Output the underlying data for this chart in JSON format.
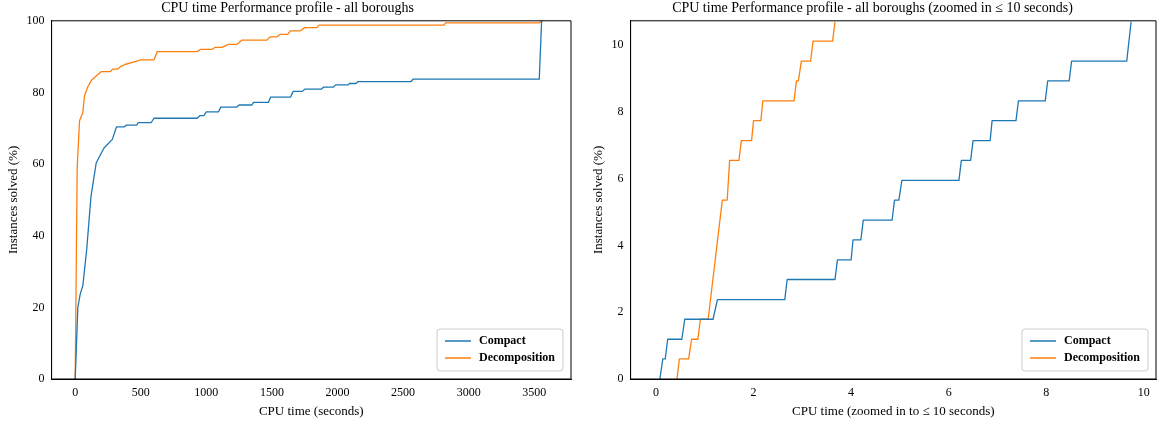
{
  "chart_data": [
    {
      "type": "line",
      "title": "CPU time Performance profile - all boroughs",
      "xlabel": "CPU time (seconds)",
      "ylabel": "Instances solved (%)",
      "xlim": [
        -180,
        3780
      ],
      "ylim": [
        0,
        100
      ],
      "xticks": [
        0,
        500,
        1000,
        1500,
        2000,
        2500,
        3000,
        3500
      ],
      "yticks": [
        0,
        20,
        40,
        60,
        80,
        100
      ],
      "grid": false,
      "legend": "bottom right",
      "marker": "none",
      "line_style": "solid",
      "series": [
        {
          "name": "Compact",
          "color": "#1f77b4",
          "x": [
            0,
            20,
            38,
            58,
            88,
            120,
            160,
            195,
            220,
            283,
            315,
            376,
            390,
            470,
            480,
            580,
            600,
            930,
            950,
            980,
            1000,
            1093,
            1110,
            1230,
            1250,
            1347,
            1360,
            1473,
            1490,
            1642,
            1662,
            1732,
            1750,
            1876,
            1894,
            1970,
            1985,
            2079,
            2091,
            2140,
            2154,
            2558,
            2576,
            3538,
            3556
          ],
          "values": [
            0,
            20,
            23.7,
            26,
            36.3,
            50.9,
            60.3,
            62.8,
            64.5,
            66.9,
            70.4,
            70.4,
            70.9,
            70.9,
            71.6,
            71.6,
            72.8,
            72.8,
            73.5,
            73.5,
            74.6,
            74.6,
            75.9,
            75.9,
            76.5,
            76.5,
            77.2,
            77.2,
            78.7,
            78.7,
            80.3,
            80.3,
            80.9,
            80.9,
            81.5,
            81.5,
            82.1,
            82.1,
            82.5,
            82.5,
            83.0,
            83.0,
            83.7,
            83.7,
            100
          ]
        },
        {
          "name": "Decomposition",
          "color": "#ff7f0e",
          "x": [
            0,
            15,
            33,
            58,
            71,
            96,
            126,
            197,
            268,
            285,
            323,
            348,
            379,
            437,
            500,
            588,
            601,
            626,
            929,
            955,
            1043,
            1068,
            1119,
            1169,
            1232,
            1270,
            1460,
            1485,
            1536,
            1561,
            1620,
            1640,
            1716,
            1750,
            1843,
            1859,
            2811,
            2824,
            3538,
            3556
          ],
          "values": [
            0,
            59,
            72.1,
            74.4,
            79.1,
            81.6,
            83.5,
            85.8,
            85.8,
            86.5,
            86.5,
            87.3,
            87.8,
            88.4,
            89.1,
            89.1,
            89.1,
            91.4,
            91.4,
            92.0,
            92.0,
            92.6,
            92.6,
            93.4,
            93.4,
            94.6,
            94.6,
            95.5,
            95.5,
            96.2,
            96.2,
            97.2,
            97.2,
            98.1,
            98.1,
            98.8,
            98.8,
            99.4,
            99.4,
            100
          ]
        }
      ]
    },
    {
      "type": "line",
      "title": "CPU time Performance profile - all boroughs (zoomed in ≤ 10 seconds)",
      "xlabel": "CPU time (zoomed in to ≤ 10 seconds)",
      "ylabel": "Instances solved (%)",
      "xlim": [
        -0.52,
        10.25
      ],
      "ylim": [
        0,
        10.73
      ],
      "xticks": [
        0,
        2,
        4,
        6,
        8,
        10
      ],
      "yticks": [
        0,
        2,
        4,
        6,
        8,
        10
      ],
      "grid": false,
      "legend": "bottom right",
      "marker": "none",
      "line_style": "solid",
      "series": [
        {
          "name": "Compact",
          "color": "#1f77b4",
          "x": [
            0.08,
            0.14,
            0.19,
            0.24,
            0.53,
            0.59,
            1.17,
            1.26,
            2.64,
            2.69,
            3.67,
            3.72,
            4.0,
            4.04,
            4.2,
            4.25,
            4.84,
            4.89,
            4.98,
            5.04,
            6.21,
            6.26,
            6.45,
            6.5,
            6.85,
            6.89,
            7.38,
            7.43,
            7.98,
            8.03,
            8.47,
            8.52,
            9.65,
            9.74
          ],
          "values": [
            0,
            0.6,
            0.6,
            1.19,
            1.19,
            1.79,
            1.79,
            2.38,
            2.38,
            2.98,
            2.98,
            3.57,
            3.57,
            4.17,
            4.17,
            4.76,
            4.76,
            5.36,
            5.36,
            5.95,
            5.95,
            6.55,
            6.55,
            7.14,
            7.14,
            7.74,
            7.74,
            8.33,
            8.33,
            8.93,
            8.93,
            9.52,
            9.52,
            10.7
          ]
        },
        {
          "name": "Decomposition",
          "color": "#ff7f0e",
          "x": [
            0.43,
            0.48,
            0.67,
            0.73,
            0.86,
            0.91,
            1.07,
            1.36,
            1.46,
            1.51,
            1.7,
            1.75,
            1.96,
            2.0,
            2.15,
            2.19,
            2.83,
            2.88,
            2.92,
            2.98,
            3.17,
            3.22,
            3.62,
            3.67
          ],
          "values": [
            0,
            0.6,
            0.6,
            1.19,
            1.19,
            1.79,
            1.79,
            5.36,
            5.36,
            6.55,
            6.55,
            7.14,
            7.14,
            7.74,
            7.74,
            8.33,
            8.33,
            8.93,
            8.93,
            9.52,
            9.52,
            10.12,
            10.12,
            10.7
          ]
        }
      ]
    }
  ]
}
